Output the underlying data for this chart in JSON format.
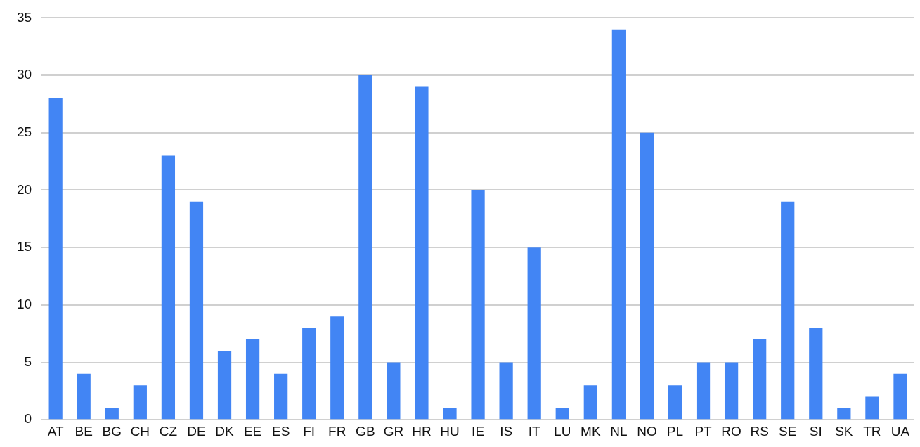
{
  "chart_data": {
    "type": "bar",
    "categories": [
      "AT",
      "BE",
      "BG",
      "CH",
      "CZ",
      "DE",
      "DK",
      "EE",
      "ES",
      "FI",
      "FR",
      "GB",
      "GR",
      "HR",
      "HU",
      "IE",
      "IS",
      "IT",
      "LU",
      "MK",
      "NL",
      "NO",
      "PL",
      "PT",
      "RO",
      "RS",
      "SE",
      "SI",
      "SK",
      "TR",
      "UA"
    ],
    "values": [
      28,
      4,
      1,
      3,
      23,
      19,
      6,
      7,
      4,
      8,
      9,
      30,
      5,
      29,
      1,
      20,
      5,
      15,
      1,
      3,
      34,
      25,
      3,
      5,
      5,
      7,
      19,
      8,
      1,
      2,
      4
    ],
    "color": "#4285f4",
    "ylim": [
      0,
      35
    ],
    "yticks": [
      0,
      5,
      10,
      15,
      20,
      25,
      30,
      35
    ],
    "grid": "y",
    "legend": false
  }
}
